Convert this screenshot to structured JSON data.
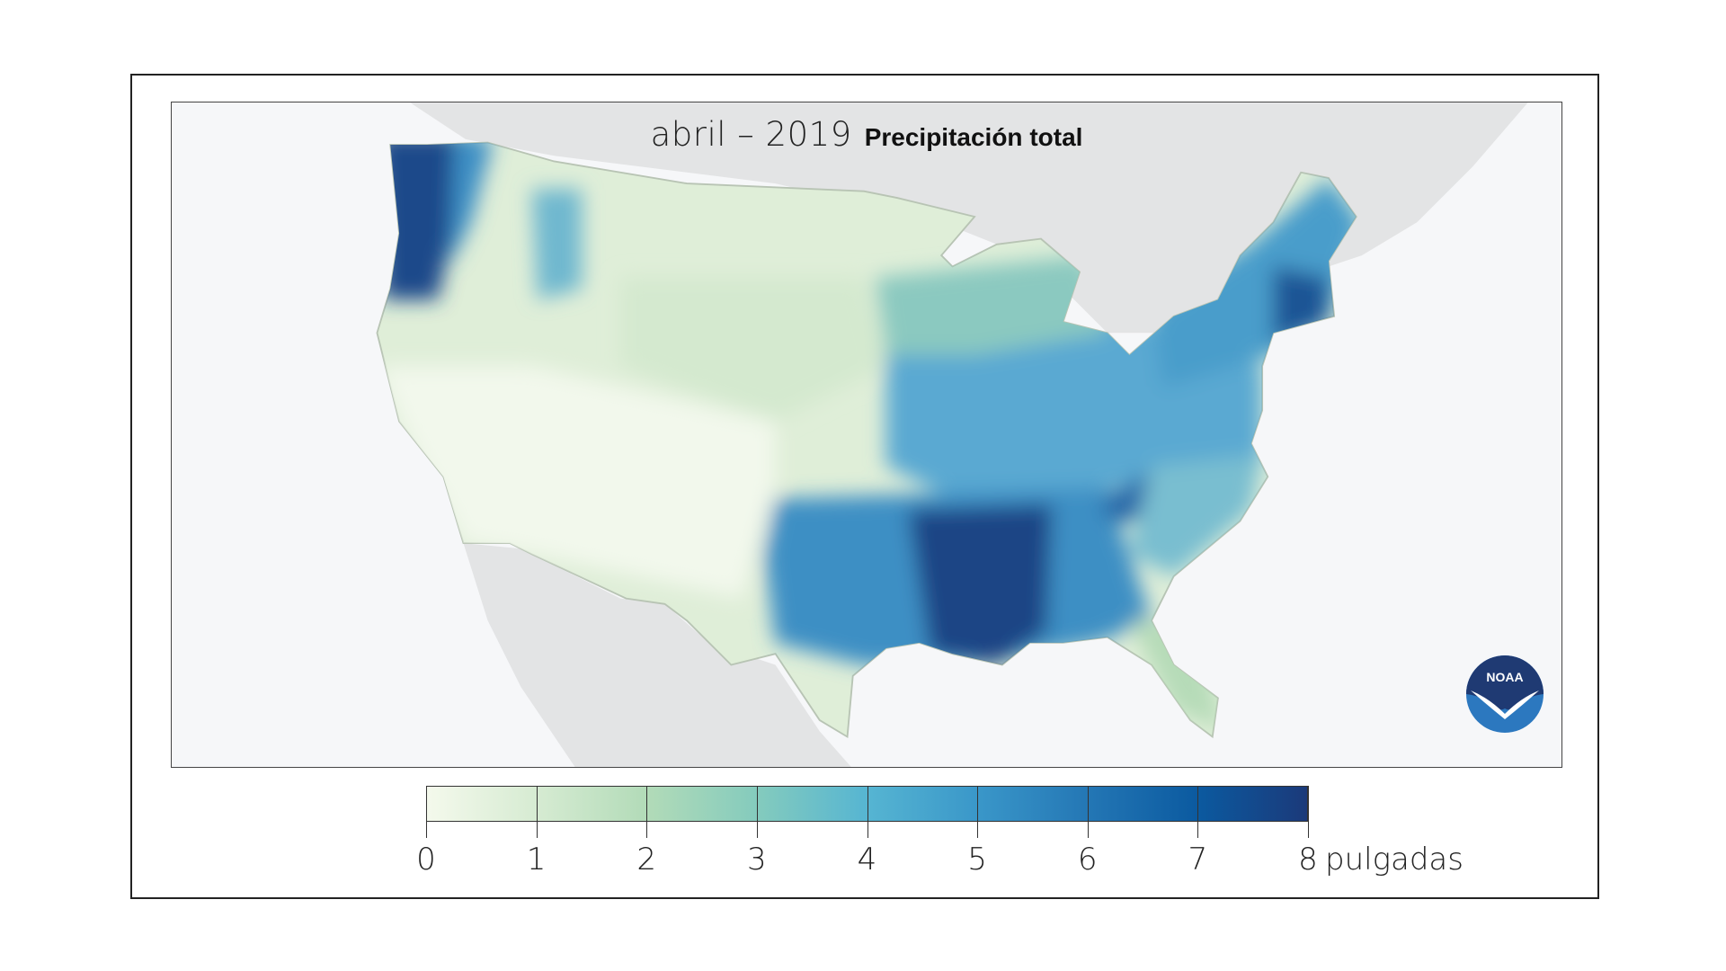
{
  "title": {
    "period": "abril – 2019",
    "variable": "Precipitación total"
  },
  "legend": {
    "ticks": [
      "0",
      "1",
      "2",
      "3",
      "4",
      "5",
      "6",
      "7",
      "8"
    ],
    "unit": "pulgadas",
    "range": [
      0,
      8
    ],
    "colors": [
      "#f4f9ec",
      "#d6ebd2",
      "#b2dbb8",
      "#84cbbd",
      "#56b5d2",
      "#3a97c9",
      "#2477b5",
      "#0b5aa0",
      "#1b3a7a"
    ]
  },
  "logo": {
    "text": "NOAA",
    "colors": {
      "top": "#1f3a73",
      "bottom": "#2c78bf"
    }
  },
  "map_colors": {
    "ocean": "#f6f7f9",
    "land_outside": "#e3e4e5",
    "dry": "#eef5e6",
    "wettest": "#1b3d7a"
  }
}
